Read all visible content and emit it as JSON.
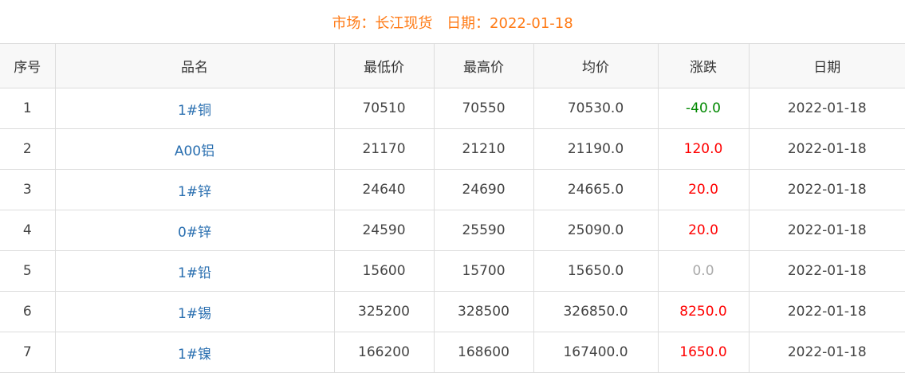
{
  "header": {
    "market_label": "市场：长江现货",
    "date_label": "日期：2022-01-18"
  },
  "columns": [
    "序号",
    "品名",
    "最低价",
    "最高价",
    "均价",
    "涨跌",
    "日期"
  ],
  "rows": [
    {
      "no": "1",
      "name": "1#铜",
      "low": "70510",
      "high": "70550",
      "avg": "70530.0",
      "change": "-40.0",
      "dir": "down",
      "date": "2022-01-18"
    },
    {
      "no": "2",
      "name": "A00铝",
      "low": "21170",
      "high": "21210",
      "avg": "21190.0",
      "change": "120.0",
      "dir": "up",
      "date": "2022-01-18"
    },
    {
      "no": "3",
      "name": "1#锌",
      "low": "24640",
      "high": "24690",
      "avg": "24665.0",
      "change": "20.0",
      "dir": "up",
      "date": "2022-01-18"
    },
    {
      "no": "4",
      "name": "0#锌",
      "low": "24590",
      "high": "25590",
      "avg": "25090.0",
      "change": "20.0",
      "dir": "up",
      "date": "2022-01-18"
    },
    {
      "no": "5",
      "name": "1#铅",
      "low": "15600",
      "high": "15700",
      "avg": "15650.0",
      "change": "0.0",
      "dir": "flat",
      "date": "2022-01-18"
    },
    {
      "no": "6",
      "name": "1#锡",
      "low": "325200",
      "high": "328500",
      "avg": "326850.0",
      "change": "8250.0",
      "dir": "up",
      "date": "2022-01-18"
    },
    {
      "no": "7",
      "name": "1#镍",
      "low": "166200",
      "high": "168600",
      "avg": "167400.0",
      "change": "1650.0",
      "dir": "up",
      "date": "2022-01-18"
    }
  ],
  "colors": {
    "title": "#ff7a15",
    "up": "#ff0000",
    "down": "#008800",
    "flat": "#aaaaaa",
    "name": "#2a6fb0"
  }
}
